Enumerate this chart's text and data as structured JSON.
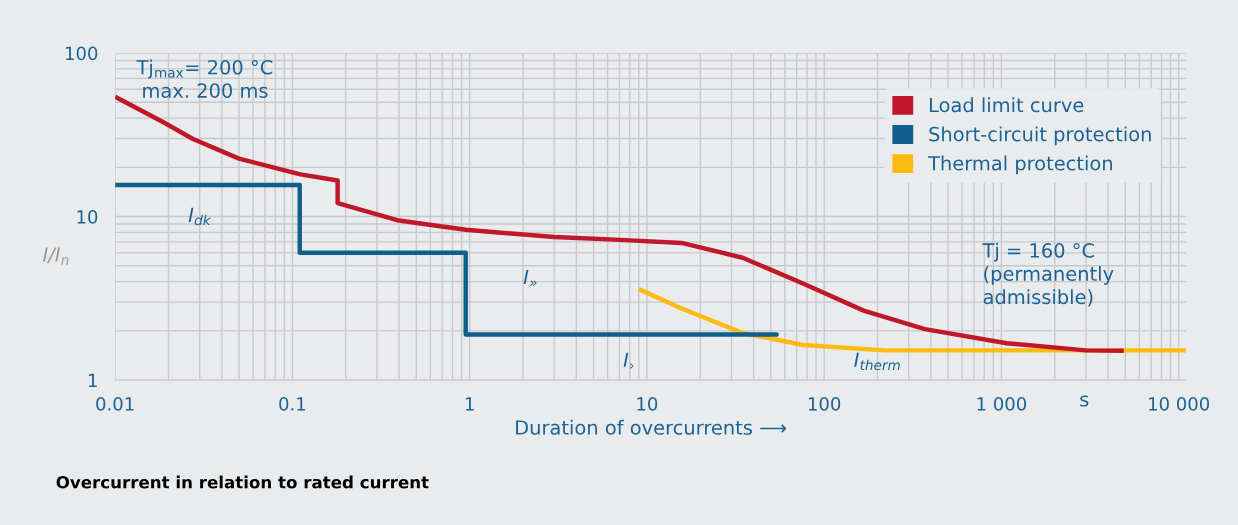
{
  "chart_data": {
    "type": "line",
    "title": "Overcurrent in relation to rated current",
    "xlabel": "Duration of overcurrents ⟶",
    "ylabel": "I/I$_{n}$",
    "log": "xy",
    "xlim": [
      0.01,
      11000
    ],
    "ylim": [
      1,
      100
    ],
    "xticks": [
      0.01,
      0.1,
      1,
      10,
      100,
      {
        "value": 1000,
        "label": "1 000"
      },
      {
        "value": 10000,
        "label": "10 000"
      }
    ],
    "yticks": [
      1,
      10,
      100
    ],
    "grid": true,
    "legend": "top right",
    "marker": "none",
    "line_style": "solid",
    "series": [
      {
        "name": "Load limit curve",
        "color": "#c0182a",
        "x": [
          0.01,
          0.0185,
          0.0275,
          0.05,
          0.111,
          0.18,
          0.18,
          0.39,
          0.95,
          3.0,
          7.1,
          15.7,
          34.7,
          76,
          167,
          370,
          1070,
          3000,
          4900
        ],
        "values": [
          54,
          38,
          29.8,
          22.6,
          18.1,
          16.6,
          12.1,
          9.5,
          8.3,
          7.5,
          7.2,
          6.9,
          5.6,
          3.9,
          2.66,
          2.05,
          1.68,
          1.52,
          1.51
        ]
      },
      {
        "name": "Short-circuit protection",
        "color": "#0f5f8c",
        "type": "step",
        "x": [
          0.01,
          0.11,
          0.95,
          54
        ],
        "values": [
          15.6,
          6,
          1.9,
          1.9
        ]
      },
      {
        "name": "Thermal protection",
        "color": "#fbbb10",
        "x": [
          9.0,
          15.7,
          34.7,
          76,
          220,
          1000,
          11000
        ],
        "values": [
          3.6,
          2.74,
          1.94,
          1.64,
          1.52,
          1.52,
          1.52
        ]
      }
    ],
    "annotations": [
      "Tj$_{max}$= 200 °C\nmax. 200 ms",
      "Tj = 160 °C\n(permanently\nadmissible)",
      "s",
      "I$_{dk}$",
      "I$_{»}$",
      "I$_{›}$",
      "I$_{therm}$"
    ]
  }
}
